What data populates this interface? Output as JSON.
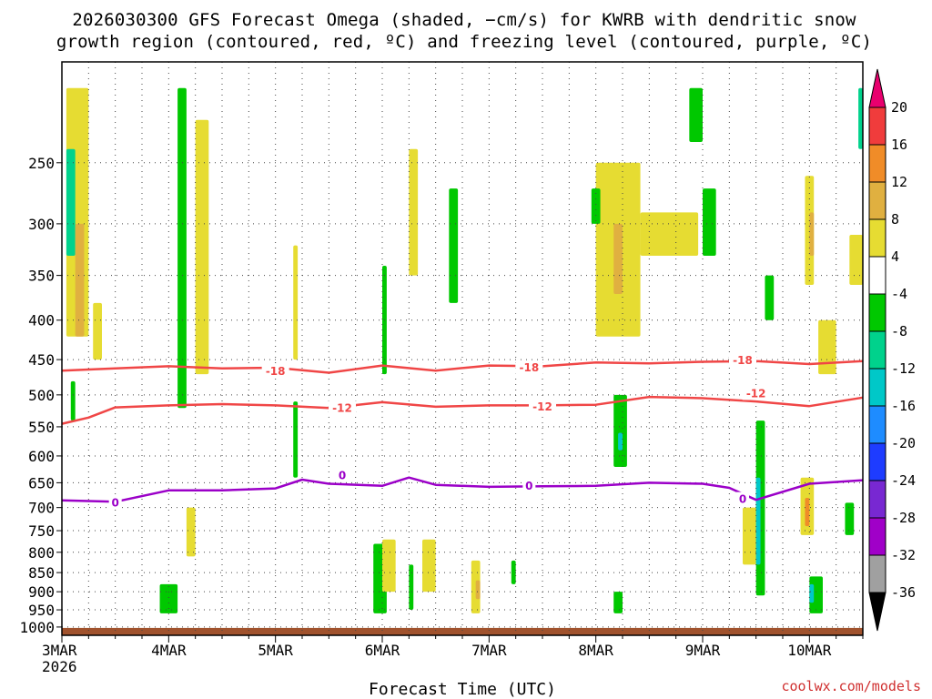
{
  "title": {
    "line1": "2026030300 GFS Forecast Omega (shaded, −cm/s) for KWRB with dendritic snow",
    "line2": "growth region (contoured, red, ºC) and freezing level (contoured, purple, ºC)"
  },
  "credit": "coolwx.com/models",
  "chart_data": {
    "type": "heatmap",
    "xlabel": "Forecast Time (UTC)",
    "ylabel": "",
    "x_ticks": [
      "3MAR",
      "4MAR",
      "5MAR",
      "6MAR",
      "7MAR",
      "8MAR",
      "9MAR",
      "10MAR"
    ],
    "x_first_sublabel": "2026",
    "x_range": [
      "2026-03-03 00Z",
      "2026-03-10 12Z"
    ],
    "y_ticks": [
      250,
      300,
      350,
      400,
      450,
      500,
      550,
      600,
      650,
      700,
      750,
      800,
      850,
      900,
      950,
      1000
    ],
    "y_range_hpa": [
      1025,
      185
    ],
    "y_scale": "log",
    "grid": true,
    "colorbar": {
      "levels": [
        20,
        16,
        12,
        8,
        4,
        -4,
        -8,
        -12,
        -16,
        -20,
        -24,
        -28,
        -32,
        -36
      ],
      "colors": [
        "#f03c3c",
        "#f08c28",
        "#e0b040",
        "#e6dc32",
        "#ffffff",
        "#00c800",
        "#00d28c",
        "#00c8c8",
        "#1e8cff",
        "#1e3cff",
        "#7828d2",
        "#a000c8",
        "#a0a0a0"
      ],
      "over_color": "#e8006e",
      "under_color": "#000000"
    },
    "contours": [
      {
        "name": "-18",
        "color": "#f04646",
        "unit": "ºC",
        "points": [
          [
            "2026-03-03 00Z",
            465
          ],
          [
            "2026-03-03 12Z",
            462
          ],
          [
            "2026-03-04 00Z",
            459
          ],
          [
            "2026-03-04 12Z",
            462
          ],
          [
            "2026-03-05 00Z",
            461
          ],
          [
            "2026-03-05 12Z",
            468
          ],
          [
            "2026-03-06 00Z",
            458
          ],
          [
            "2026-03-06 12Z",
            465
          ],
          [
            "2026-03-07 00Z",
            458
          ],
          [
            "2026-03-07 12Z",
            459
          ],
          [
            "2026-03-08 00Z",
            454
          ],
          [
            "2026-03-08 12Z",
            455
          ],
          [
            "2026-03-09 00Z",
            453
          ],
          [
            "2026-03-09 12Z",
            452
          ],
          [
            "2026-03-10 00Z",
            456
          ],
          [
            "2026-03-10 12Z",
            452
          ]
        ]
      },
      {
        "name": "-12",
        "color": "#f04646",
        "unit": "ºC",
        "points": [
          [
            "2026-03-03 00Z",
            545
          ],
          [
            "2026-03-03 06Z",
            535
          ],
          [
            "2026-03-03 12Z",
            519
          ],
          [
            "2026-03-04 00Z",
            516
          ],
          [
            "2026-03-04 12Z",
            514
          ],
          [
            "2026-03-05 00Z",
            516
          ],
          [
            "2026-03-05 12Z",
            520
          ],
          [
            "2026-03-06 00Z",
            511
          ],
          [
            "2026-03-06 12Z",
            518
          ],
          [
            "2026-03-07 00Z",
            516
          ],
          [
            "2026-03-07 12Z",
            516
          ],
          [
            "2026-03-08 00Z",
            515
          ],
          [
            "2026-03-08 12Z",
            503
          ],
          [
            "2026-03-09 00Z",
            505
          ],
          [
            "2026-03-09 12Z",
            510
          ],
          [
            "2026-03-10 00Z",
            517
          ],
          [
            "2026-03-10 12Z",
            504
          ]
        ]
      },
      {
        "name": "0",
        "color": "#9b00c8",
        "unit": "ºC",
        "points": [
          [
            "2026-03-03 00Z",
            685
          ],
          [
            "2026-03-03 12Z",
            688
          ],
          [
            "2026-03-04 00Z",
            665
          ],
          [
            "2026-03-04 12Z",
            665
          ],
          [
            "2026-03-05 00Z",
            661
          ],
          [
            "2026-03-05 06Z",
            644
          ],
          [
            "2026-03-05 12Z",
            652
          ],
          [
            "2026-03-06 00Z",
            656
          ],
          [
            "2026-03-06 06Z",
            640
          ],
          [
            "2026-03-06 12Z",
            654
          ],
          [
            "2026-03-07 00Z",
            658
          ],
          [
            "2026-03-07 12Z",
            657
          ],
          [
            "2026-03-08 00Z",
            656
          ],
          [
            "2026-03-08 12Z",
            650
          ],
          [
            "2026-03-09 00Z",
            652
          ],
          [
            "2026-03-09 06Z",
            660
          ],
          [
            "2026-03-09 12Z",
            684
          ],
          [
            "2026-03-10 00Z",
            652
          ],
          [
            "2026-03-10 12Z",
            645
          ]
        ]
      }
    ],
    "contour_labels": [
      {
        "text": "-18",
        "at": [
          "2026-03-05 00Z",
          466
        ],
        "color": "#f04646"
      },
      {
        "text": "-18",
        "at": [
          "2026-03-07 09Z",
          461
        ],
        "color": "#f04646"
      },
      {
        "text": "-18",
        "at": [
          "2026-03-09 09Z",
          451
        ],
        "color": "#f04646"
      },
      {
        "text": "-12",
        "at": [
          "2026-03-05 15Z",
          520
        ],
        "color": "#f04646"
      },
      {
        "text": "-12",
        "at": [
          "2026-03-07 12Z",
          518
        ],
        "color": "#f04646"
      },
      {
        "text": "-12",
        "at": [
          "2026-03-09 12Z",
          498
        ],
        "color": "#f04646"
      },
      {
        "text": "0",
        "at": [
          "2026-03-03 12Z",
          690
        ],
        "color": "#9b00c8"
      },
      {
        "text": "0",
        "at": [
          "2026-03-05 15Z",
          636
        ],
        "color": "#9b00c8"
      },
      {
        "text": "0",
        "at": [
          "2026-03-07 09Z",
          656
        ],
        "color": "#9b00c8"
      },
      {
        "text": "0",
        "at": [
          "2026-03-09 09Z",
          683
        ],
        "color": "#9b00c8"
      }
    ],
    "ground_color": "#a0522d",
    "omega_cells": [
      {
        "t": [
          "2026-03-03 01Z",
          "2026-03-03 06Z"
        ],
        "p": [
          200,
          420
        ],
        "color": "#e6dc32"
      },
      {
        "t": [
          "2026-03-03 01Z",
          "2026-03-03 03Z"
        ],
        "p": [
          240,
          330
        ],
        "color": "#00d28c"
      },
      {
        "t": [
          "2026-03-03 03Z",
          "2026-03-03 05Z"
        ],
        "p": [
          300,
          420
        ],
        "color": "#e0b040"
      },
      {
        "t": [
          "2026-03-03 02Z",
          "2026-03-03 03Z"
        ],
        "p": [
          480,
          540
        ],
        "color": "#00c800"
      },
      {
        "t": [
          "2026-03-03 07Z",
          "2026-03-03 09Z"
        ],
        "p": [
          380,
          450
        ],
        "color": "#e6dc32"
      },
      {
        "t": [
          "2026-03-04 02Z",
          "2026-03-04 04Z"
        ],
        "p": [
          200,
          520
        ],
        "color": "#00c800"
      },
      {
        "t": [
          "2026-03-04 06Z",
          "2026-03-04 09Z"
        ],
        "p": [
          220,
          470
        ],
        "color": "#e6dc32"
      },
      {
        "t": [
          "2026-03-04 04Z",
          "2026-03-04 06Z"
        ],
        "p": [
          700,
          810
        ],
        "color": "#e6dc32"
      },
      {
        "t": [
          "2026-03-03 22Z",
          "2026-03-04 02Z"
        ],
        "p": [
          880,
          960
        ],
        "color": "#00c800"
      },
      {
        "t": [
          "2026-03-05 04Z",
          "2026-03-05 05Z"
        ],
        "p": [
          320,
          450
        ],
        "color": "#e6dc32"
      },
      {
        "t": [
          "2026-03-05 04Z",
          "2026-03-05 05Z"
        ],
        "p": [
          510,
          640
        ],
        "color": "#00c800"
      },
      {
        "t": [
          "2026-03-06 00Z",
          "2026-03-06 01Z"
        ],
        "p": [
          340,
          470
        ],
        "color": "#00c800"
      },
      {
        "t": [
          "2026-03-06 06Z",
          "2026-03-06 08Z"
        ],
        "p": [
          240,
          350
        ],
        "color": "#e6dc32"
      },
      {
        "t": [
          "2026-03-06 15Z",
          "2026-03-06 17Z"
        ],
        "p": [
          270,
          380
        ],
        "color": "#00c800"
      },
      {
        "t": [
          "2026-03-05 22Z",
          "2026-03-06 01Z"
        ],
        "p": [
          780,
          960
        ],
        "color": "#00c800"
      },
      {
        "t": [
          "2026-03-06 00Z",
          "2026-03-06 03Z"
        ],
        "p": [
          770,
          900
        ],
        "color": "#e6dc32"
      },
      {
        "t": [
          "2026-03-06 06Z",
          "2026-03-06 07Z"
        ],
        "p": [
          830,
          950
        ],
        "color": "#00c800"
      },
      {
        "t": [
          "2026-03-06 09Z",
          "2026-03-06 12Z"
        ],
        "p": [
          770,
          900
        ],
        "color": "#e6dc32"
      },
      {
        "t": [
          "2026-03-06 20Z",
          "2026-03-06 22Z"
        ],
        "p": [
          820,
          960
        ],
        "color": "#e6dc32"
      },
      {
        "t": [
          "2026-03-06 21Z",
          "2026-03-06 22Z"
        ],
        "p": [
          870,
          920
        ],
        "color": "#e0b040"
      },
      {
        "t": [
          "2026-03-07 05Z",
          "2026-03-07 06Z"
        ],
        "p": [
          820,
          880
        ],
        "color": "#00c800"
      },
      {
        "t": [
          "2026-03-08 00Z",
          "2026-03-08 10Z"
        ],
        "p": [
          250,
          420
        ],
        "color": "#e6dc32"
      },
      {
        "t": [
          "2026-03-08 04Z",
          "2026-03-08 06Z"
        ],
        "p": [
          300,
          370
        ],
        "color": "#e0b040"
      },
      {
        "t": [
          "2026-03-08 10Z",
          "2026-03-08 23Z"
        ],
        "p": [
          290,
          330
        ],
        "color": "#e6dc32"
      },
      {
        "t": [
          "2026-03-07 23Z",
          "2026-03-08 01Z"
        ],
        "p": [
          270,
          300
        ],
        "color": "#00c800"
      },
      {
        "t": [
          "2026-03-08 04Z",
          "2026-03-08 07Z"
        ],
        "p": [
          500,
          620
        ],
        "color": "#00c800"
      },
      {
        "t": [
          "2026-03-08 05Z",
          "2026-03-08 06Z"
        ],
        "p": [
          560,
          590
        ],
        "color": "#00c8c8"
      },
      {
        "t": [
          "2026-03-08 04Z",
          "2026-03-08 06Z"
        ],
        "p": [
          900,
          960
        ],
        "color": "#00c800"
      },
      {
        "t": [
          "2026-03-08 21Z",
          "2026-03-09 00Z"
        ],
        "p": [
          200,
          235
        ],
        "color": "#00c800"
      },
      {
        "t": [
          "2026-03-09 00Z",
          "2026-03-09 03Z"
        ],
        "p": [
          270,
          330
        ],
        "color": "#00c800"
      },
      {
        "t": [
          "2026-03-09 09Z",
          "2026-03-09 12Z"
        ],
        "p": [
          700,
          830
        ],
        "color": "#e6dc32"
      },
      {
        "t": [
          "2026-03-09 12Z",
          "2026-03-09 14Z"
        ],
        "p": [
          540,
          910
        ],
        "color": "#00c800"
      },
      {
        "t": [
          "2026-03-09 12Z",
          "2026-03-09 13Z"
        ],
        "p": [
          640,
          830
        ],
        "color": "#00c8c8"
      },
      {
        "t": [
          "2026-03-09 14Z",
          "2026-03-09 16Z"
        ],
        "p": [
          350,
          400
        ],
        "color": "#00c800"
      },
      {
        "t": [
          "2026-03-09 22Z",
          "2026-03-10 01Z"
        ],
        "p": [
          640,
          760
        ],
        "color": "#e6dc32"
      },
      {
        "t": [
          "2026-03-09 23Z",
          "2026-03-10 00Z"
        ],
        "p": [
          680,
          740
        ],
        "color": "#f08c28"
      },
      {
        "t": [
          "2026-03-10 00Z",
          "2026-03-10 03Z"
        ],
        "p": [
          860,
          960
        ],
        "color": "#00c800"
      },
      {
        "t": [
          "2026-03-10 00Z",
          "2026-03-10 01Z"
        ],
        "p": [
          880,
          930
        ],
        "color": "#00c8c8"
      },
      {
        "t": [
          "2026-03-09 23Z",
          "2026-03-10 01Z"
        ],
        "p": [
          260,
          360
        ],
        "color": "#e6dc32"
      },
      {
        "t": [
          "2026-03-10 00Z",
          "2026-03-10 01Z"
        ],
        "p": [
          290,
          330
        ],
        "color": "#e0b040"
      },
      {
        "t": [
          "2026-03-10 02Z",
          "2026-03-10 06Z"
        ],
        "p": [
          400,
          470
        ],
        "color": "#e6dc32"
      },
      {
        "t": [
          "2026-03-10 08Z",
          "2026-03-10 10Z"
        ],
        "p": [
          690,
          760
        ],
        "color": "#00c800"
      },
      {
        "t": [
          "2026-03-10 09Z",
          "2026-03-10 12Z"
        ],
        "p": [
          310,
          360
        ],
        "color": "#e6dc32"
      },
      {
        "t": [
          "2026-03-10 11Z",
          "2026-03-10 12Z"
        ],
        "p": [
          200,
          240
        ],
        "color": "#00d28c"
      }
    ]
  }
}
